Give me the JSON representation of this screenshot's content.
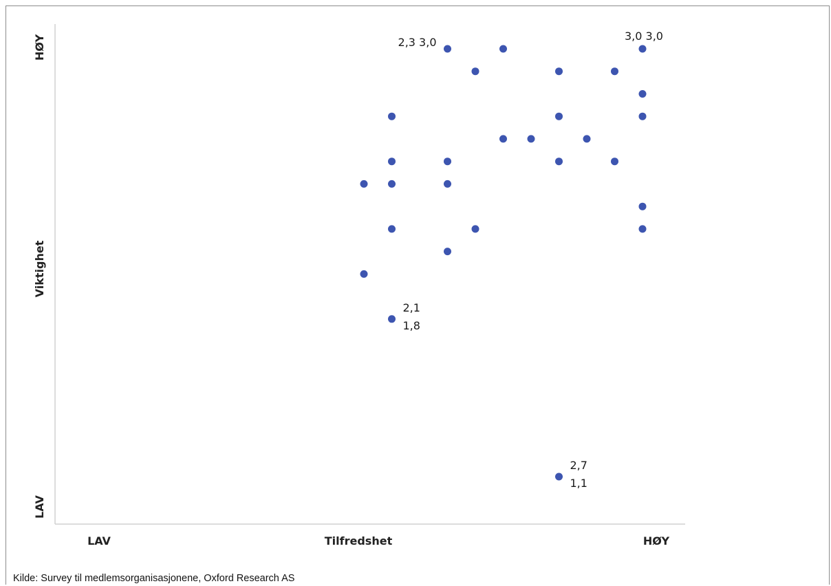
{
  "chart_data": {
    "type": "scatter",
    "title": "",
    "xlabel": "Tilfredshet",
    "ylabel": "Viktighet",
    "x_low_label": "LAV",
    "x_high_label": "HØY",
    "y_low_label": "LAV",
    "y_high_label": "HØY",
    "xlim": [
      1.0,
      3.0
    ],
    "ylim": [
      1.0,
      3.0
    ],
    "grid": false,
    "legend": "none",
    "marker_color": "#3d55b0",
    "points": [
      {
        "x": 2.3,
        "y": 3.0
      },
      {
        "x": 2.4,
        "y": 2.9
      },
      {
        "x": 2.5,
        "y": 3.0
      },
      {
        "x": 2.7,
        "y": 2.9
      },
      {
        "x": 2.9,
        "y": 2.9
      },
      {
        "x": 3.0,
        "y": 3.0
      },
      {
        "x": 3.0,
        "y": 2.8
      },
      {
        "x": 2.1,
        "y": 2.7
      },
      {
        "x": 2.7,
        "y": 2.7
      },
      {
        "x": 3.0,
        "y": 2.7
      },
      {
        "x": 2.5,
        "y": 2.6
      },
      {
        "x": 2.6,
        "y": 2.6
      },
      {
        "x": 2.8,
        "y": 2.6
      },
      {
        "x": 2.1,
        "y": 2.5
      },
      {
        "x": 2.3,
        "y": 2.5
      },
      {
        "x": 2.7,
        "y": 2.5
      },
      {
        "x": 2.9,
        "y": 2.5
      },
      {
        "x": 2.0,
        "y": 2.4
      },
      {
        "x": 2.1,
        "y": 2.4
      },
      {
        "x": 2.3,
        "y": 2.4
      },
      {
        "x": 3.0,
        "y": 2.3
      },
      {
        "x": 2.1,
        "y": 2.2
      },
      {
        "x": 2.4,
        "y": 2.2
      },
      {
        "x": 3.0,
        "y": 2.2
      },
      {
        "x": 2.3,
        "y": 2.1
      },
      {
        "x": 2.0,
        "y": 2.0
      },
      {
        "x": 2.1,
        "y": 1.8
      },
      {
        "x": 2.7,
        "y": 1.1
      }
    ],
    "annotations": [
      {
        "x": 2.3,
        "y": 3.0,
        "lines": [
          "2,3 3,0"
        ],
        "placement": "left"
      },
      {
        "x": 3.0,
        "y": 3.0,
        "lines": [
          "3,0 3,0"
        ],
        "placement": "above"
      },
      {
        "x": 2.1,
        "y": 1.8,
        "lines": [
          "2,1",
          "1,8"
        ],
        "placement": "right"
      },
      {
        "x": 2.7,
        "y": 1.1,
        "lines": [
          "2,7",
          "1,1"
        ],
        "placement": "right"
      }
    ]
  },
  "source": "Kilde: Survey til medlemsorganisasjonene, Oxford Research AS"
}
